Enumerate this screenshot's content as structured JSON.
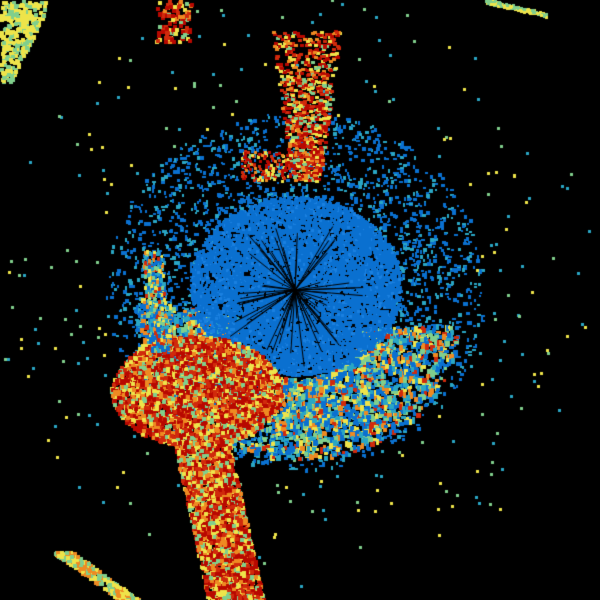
{
  "background": "#000000",
  "reflectivity_palette": {
    "blue": "#0a70d0",
    "cyan": "#2aa6c4",
    "green": "#80cf8c",
    "yellow": "#eee44a",
    "orange": "#ee8a22",
    "red": "#d02a0c",
    "dark_red": "#b80800"
  }
}
